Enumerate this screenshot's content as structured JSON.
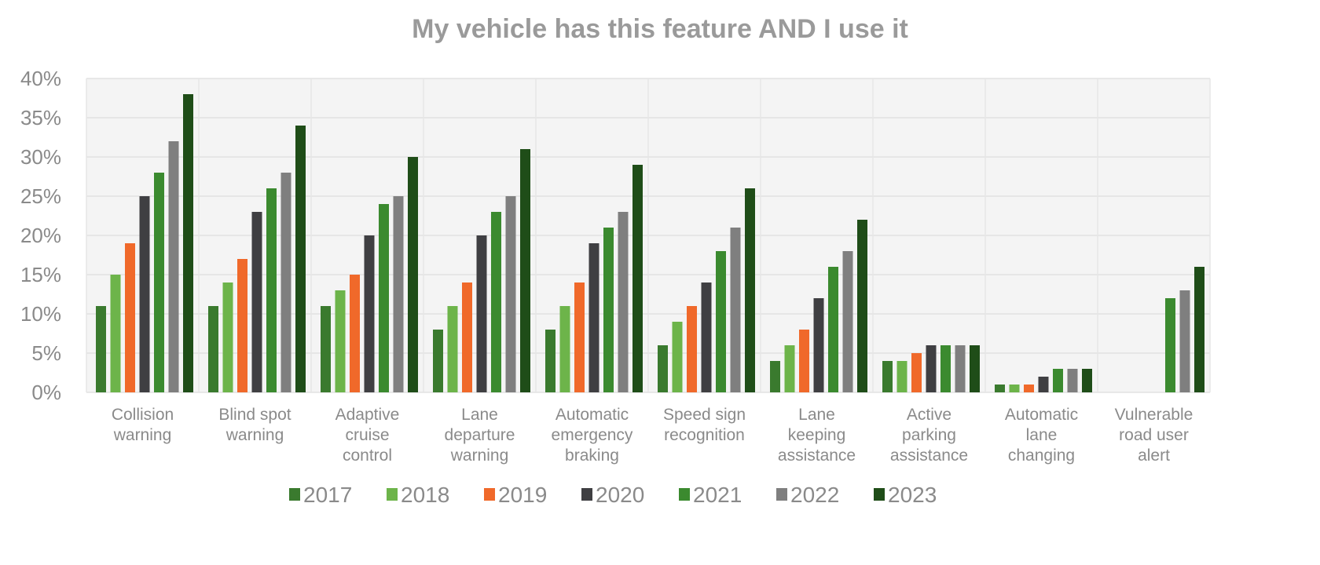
{
  "chart_data": {
    "type": "bar",
    "title": "My vehicle has this feature AND I use it",
    "xlabel": "",
    "ylabel": "",
    "ylim": [
      0,
      40
    ],
    "yticks": [
      "0%",
      "5%",
      "10%",
      "15%",
      "20%",
      "25%",
      "30%",
      "35%",
      "40%"
    ],
    "grid": true,
    "legend_position": "bottom",
    "categories": [
      [
        "Collision",
        "warning"
      ],
      [
        "Blind spot",
        "warning"
      ],
      [
        "Adaptive",
        "cruise",
        "control"
      ],
      [
        "Lane",
        "departure",
        "warning"
      ],
      [
        "Automatic",
        "emergency",
        "braking"
      ],
      [
        "Speed sign",
        "recognition"
      ],
      [
        "Lane",
        "keeping",
        "assistance"
      ],
      [
        "Active",
        "parking",
        "assistance"
      ],
      [
        "Automatic",
        "lane",
        "changing"
      ],
      [
        "Vulnerable",
        "road user",
        "alert"
      ]
    ],
    "series": [
      {
        "name": "2017",
        "color": "#3a7a2e",
        "values": [
          11,
          11,
          11,
          8,
          8,
          6,
          4,
          4,
          1,
          null
        ]
      },
      {
        "name": "2018",
        "color": "#6db44a",
        "values": [
          15,
          14,
          13,
          11,
          11,
          9,
          6,
          4,
          1,
          null
        ]
      },
      {
        "name": "2019",
        "color": "#f0692a",
        "values": [
          19,
          17,
          15,
          14,
          14,
          11,
          8,
          5,
          1,
          null
        ]
      },
      {
        "name": "2020",
        "color": "#3f3f42",
        "values": [
          25,
          23,
          20,
          20,
          19,
          14,
          12,
          6,
          2,
          null
        ]
      },
      {
        "name": "2021",
        "color": "#3b8a2f",
        "values": [
          28,
          26,
          24,
          23,
          21,
          18,
          16,
          6,
          3,
          12
        ]
      },
      {
        "name": "2022",
        "color": "#7f7f7f",
        "values": [
          32,
          28,
          25,
          25,
          23,
          21,
          18,
          6,
          3,
          13
        ]
      },
      {
        "name": "2023",
        "color": "#1f4d18",
        "values": [
          38,
          34,
          30,
          31,
          29,
          26,
          22,
          6,
          3,
          16
        ]
      }
    ]
  }
}
